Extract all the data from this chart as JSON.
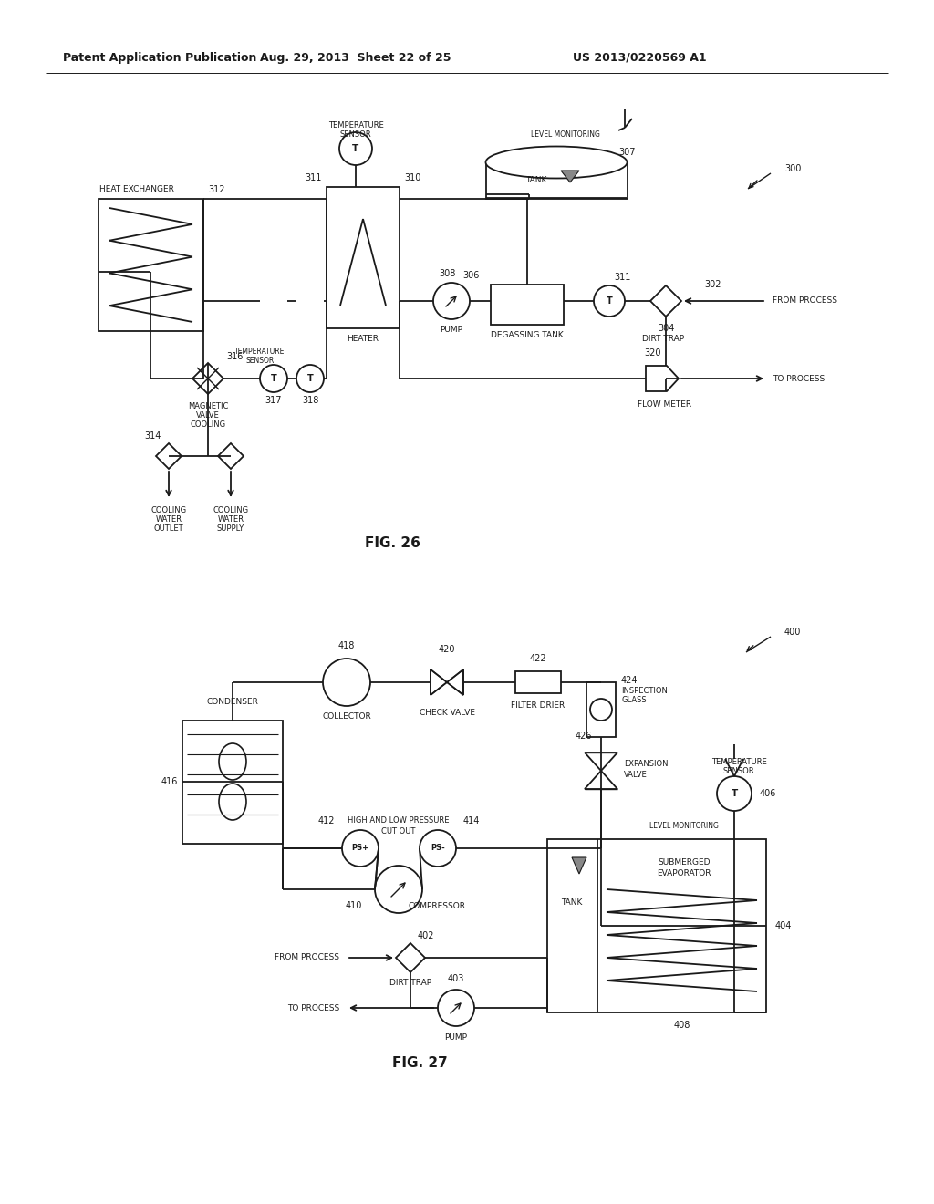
{
  "bg_color": "#ffffff",
  "lc": "#1a1a1a",
  "tc": "#1a1a1a",
  "header_left": "Patent Application Publication",
  "header_mid": "Aug. 29, 2013  Sheet 22 of 25",
  "header_right": "US 2013/0220569 A1"
}
